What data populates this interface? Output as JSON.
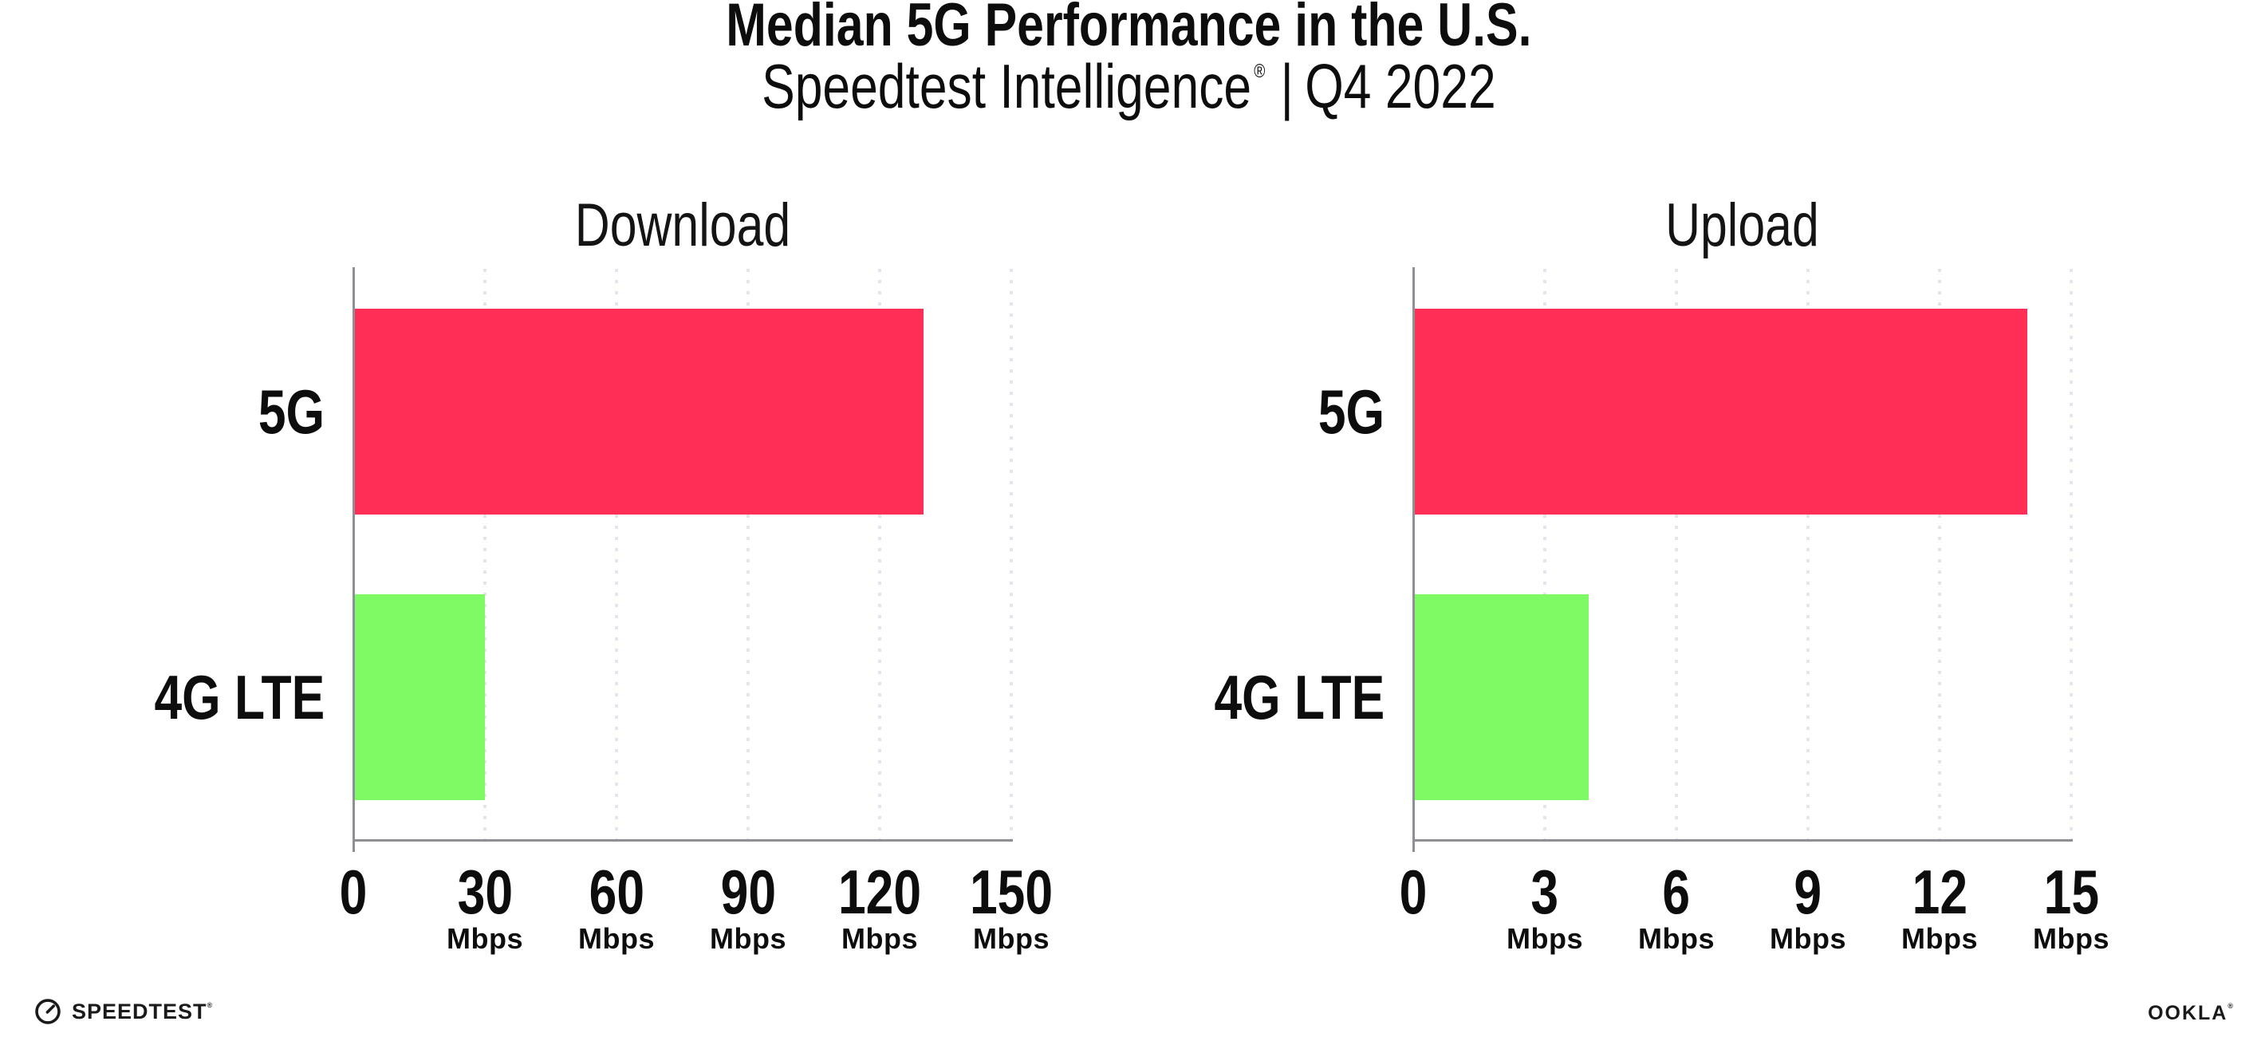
{
  "header": {
    "title": "Median 5G Performance in the U.S.",
    "subtitle_brand": "Speedtest Intelligence",
    "subtitle_regmark": "®",
    "subtitle_separator": "|",
    "subtitle_period": "Q4 2022"
  },
  "footer": {
    "speedtest_label": "SPEEDTEST",
    "speedtest_regmark": "®",
    "ookla_label": "OOKLA",
    "ookla_regmark": "®"
  },
  "colors": {
    "bar_5g_pink": "#FF2E56",
    "bar_4g_green": "#7DFA64",
    "axis_gray": "#8F8F97",
    "gridline_gray": "#E4E4EF",
    "text_black": "#0D0D0D"
  },
  "chart_data": [
    {
      "type": "bar",
      "orientation": "horizontal",
      "title": "Download",
      "categories": [
        "5G",
        "4G LTE"
      ],
      "values": [
        130,
        30
      ],
      "unit": "Mbps",
      "xlabel": "",
      "ylabel": "",
      "xlim": [
        0,
        150
      ],
      "xticks": [
        0,
        30,
        60,
        90,
        120,
        150
      ],
      "bar_colors": [
        "#FF2E56",
        "#7DFA64"
      ],
      "grid": "dotted vertical gridlines at each tick",
      "legend": "none"
    },
    {
      "type": "bar",
      "orientation": "horizontal",
      "title": "Upload",
      "categories": [
        "5G",
        "4G LTE"
      ],
      "values": [
        14,
        4
      ],
      "unit": "Mbps",
      "xlabel": "",
      "ylabel": "",
      "xlim": [
        0,
        15
      ],
      "xticks": [
        0,
        3,
        6,
        9,
        12,
        15
      ],
      "bar_colors": [
        "#FF2E56",
        "#7DFA64"
      ],
      "grid": "dotted vertical gridlines at each tick",
      "legend": "none"
    }
  ]
}
